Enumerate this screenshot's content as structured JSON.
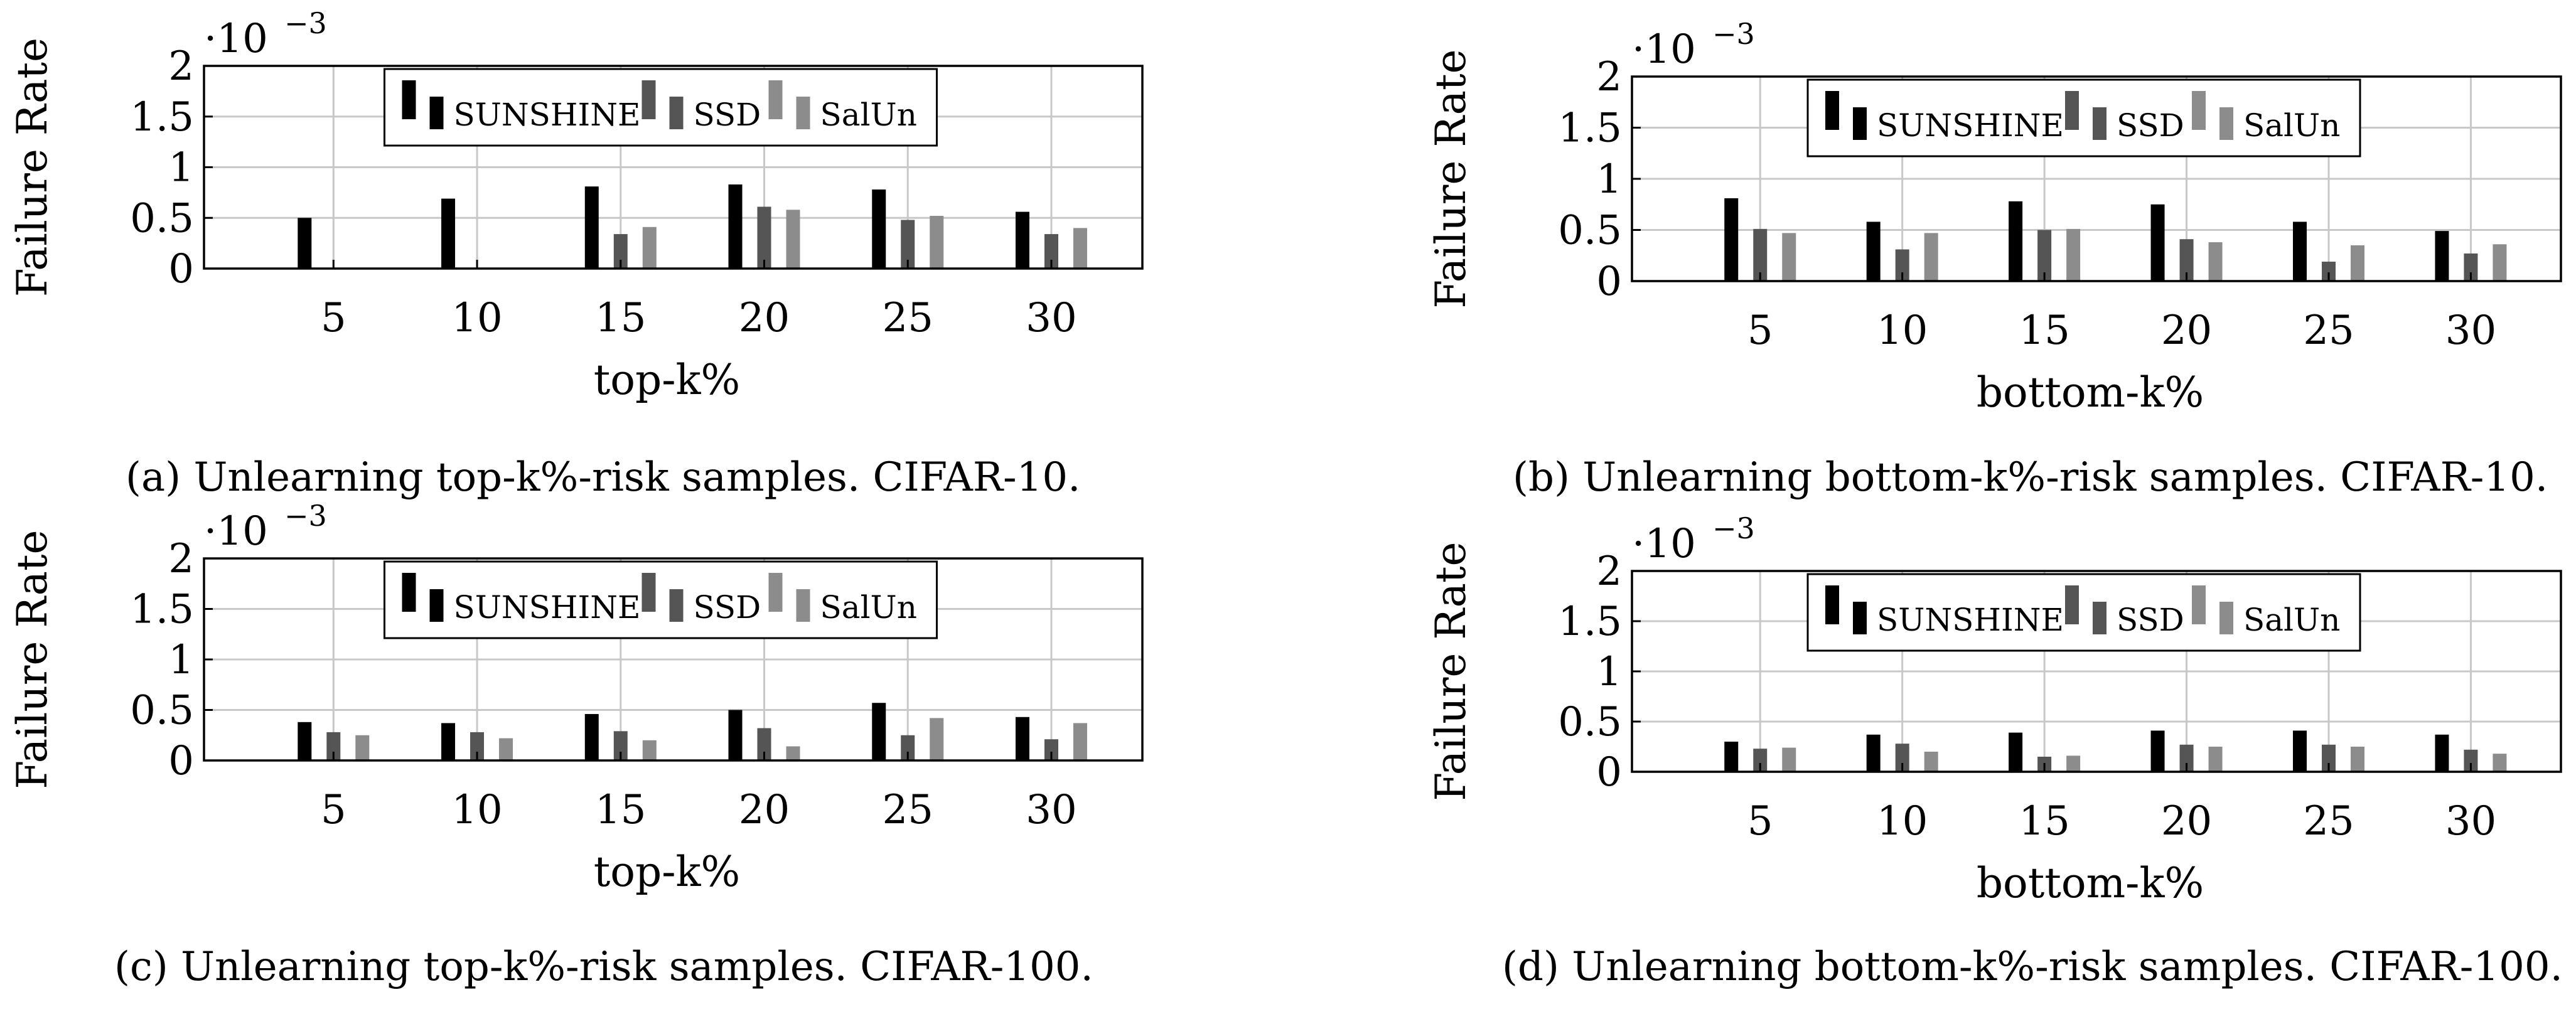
{
  "chart_data": [
    {
      "type": "bar",
      "categories": [
        "5",
        "10",
        "15",
        "20",
        "25",
        "30"
      ],
      "series": [
        {
          "name": "SUNSHINE",
          "values": [
            0.5,
            0.69,
            0.81,
            0.83,
            0.78,
            0.56
          ],
          "color": "#000000"
        },
        {
          "name": "SSD",
          "values": [
            0.0,
            0.0,
            0.34,
            0.61,
            0.48,
            0.34
          ],
          "color": "#555555"
        },
        {
          "name": "SalUn",
          "values": [
            0.0,
            0.0,
            0.41,
            0.58,
            0.52,
            0.4
          ],
          "color": "#8c8c8c"
        }
      ],
      "ylabel": "Failure Rate",
      "xlabel": "top-k%",
      "ylim": [
        0,
        2
      ],
      "yticks": [
        "0",
        "0.5",
        "1",
        "1.5",
        "2"
      ],
      "scale_label": "·10",
      "scale_exp": "−3",
      "legend_placement": "top-center",
      "grid": true,
      "caption": "(a) Unlearning top-k%-risk samples. CIFAR-10."
    },
    {
      "type": "bar",
      "categories": [
        "5",
        "10",
        "15",
        "20",
        "25",
        "30"
      ],
      "series": [
        {
          "name": "SUNSHINE",
          "values": [
            0.81,
            0.58,
            0.78,
            0.75,
            0.58,
            0.49
          ],
          "color": "#000000"
        },
        {
          "name": "SSD",
          "values": [
            0.51,
            0.31,
            0.5,
            0.41,
            0.19,
            0.27
          ],
          "color": "#555555"
        },
        {
          "name": "SalUn",
          "values": [
            0.47,
            0.47,
            0.51,
            0.38,
            0.35,
            0.36
          ],
          "color": "#8c8c8c"
        }
      ],
      "ylabel": "Failure Rate",
      "xlabel": "bottom-k%",
      "ylim": [
        0,
        2
      ],
      "yticks": [
        "0",
        "0.5",
        "1",
        "1.5",
        "2"
      ],
      "scale_label": "·10",
      "scale_exp": "−3",
      "legend_placement": "top-center",
      "grid": true,
      "caption": "(b) Unlearning bottom-k%-risk samples. CIFAR-10."
    },
    {
      "type": "bar",
      "categories": [
        "5",
        "10",
        "15",
        "20",
        "25",
        "30"
      ],
      "series": [
        {
          "name": "SUNSHINE",
          "values": [
            0.38,
            0.37,
            0.46,
            0.5,
            0.57,
            0.43
          ],
          "color": "#000000"
        },
        {
          "name": "SSD",
          "values": [
            0.28,
            0.28,
            0.29,
            0.32,
            0.25,
            0.21
          ],
          "color": "#555555"
        },
        {
          "name": "SalUn",
          "values": [
            0.25,
            0.22,
            0.2,
            0.14,
            0.42,
            0.37
          ],
          "color": "#8c8c8c"
        }
      ],
      "ylabel": "Failure Rate",
      "xlabel": "top-k%",
      "ylim": [
        0,
        2
      ],
      "yticks": [
        "0",
        "0.5",
        "1",
        "1.5",
        "2"
      ],
      "scale_label": "·10",
      "scale_exp": "−3",
      "legend_placement": "top-center",
      "grid": true,
      "caption": "(c) Unlearning top-k%-risk samples. CIFAR-100."
    },
    {
      "type": "bar",
      "categories": [
        "5",
        "10",
        "15",
        "20",
        "25",
        "30"
      ],
      "series": [
        {
          "name": "SUNSHINE",
          "values": [
            0.3,
            0.37,
            0.39,
            0.41,
            0.41,
            0.37
          ],
          "color": "#000000"
        },
        {
          "name": "SSD",
          "values": [
            0.23,
            0.28,
            0.15,
            0.27,
            0.27,
            0.22
          ],
          "color": "#555555"
        },
        {
          "name": "SalUn",
          "values": [
            0.24,
            0.2,
            0.16,
            0.25,
            0.25,
            0.18
          ],
          "color": "#8c8c8c"
        }
      ],
      "ylabel": "Failure Rate",
      "xlabel": "bottom-k%",
      "ylim": [
        0,
        2
      ],
      "yticks": [
        "0",
        "0.5",
        "1",
        "1.5",
        "2"
      ],
      "scale_label": "·10",
      "scale_exp": "−3",
      "legend_placement": "top-center",
      "grid": true,
      "caption": "(d) Unlearning bottom-k%-risk samples. CIFAR-100."
    }
  ]
}
